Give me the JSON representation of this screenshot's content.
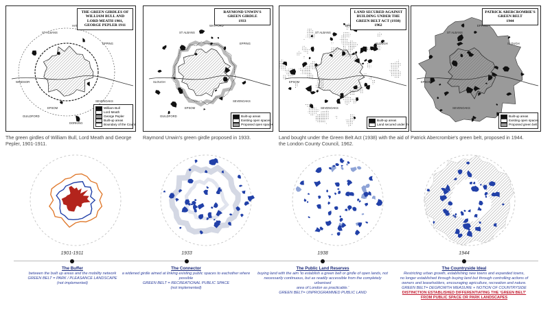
{
  "maps": [
    {
      "title": "THE GREEN GIRDLES OF\nWILLIAM BULL AND\nLORD MEATH 1901,\nGEORGE PEPLER 1911",
      "caption": "The green girdles of William Bull, Lord Meath and George Pepler, 1901-1911.",
      "legend": [
        "William Bull",
        "Lord Meath",
        "George Pepler",
        "Built-up areas",
        "Boundary of the County of London"
      ],
      "place_labels": [
        "ST ALBANS",
        "HATFIELD",
        "EPPING",
        "WINDSOR",
        "EPSOM",
        "SEVENOAKS",
        "GUILDFORD",
        "DORKING"
      ]
    },
    {
      "title": "RAYMOND UNWIN'S\nGREEN GIRDLE\n1933",
      "caption": "Raymond Unwin's green girdle proposed in 1933.",
      "legend": [
        "Built-up areas",
        "Existing open spaces",
        "Proposed open spaces"
      ],
      "place_labels": [
        "ST ALBANS",
        "WATFORD",
        "EPPING",
        "SLOUGH",
        "EPSOM",
        "SEVENOAKS",
        "GUILDFORD"
      ]
    },
    {
      "title": "LAND SECURED AGAINST\nBUILDING UNDER THE\nGREEN BELT ACT (1938)\n1962",
      "caption": "Land bought under the Green Belt Act (1938) with the aid of the London County Council, 1962.",
      "legend": [
        "Built-up areas",
        "Land secured under the Act with the aid of the London County Council"
      ],
      "place_labels": [
        "ST ALBANS",
        "EPPING",
        "SLOUGH",
        "EPSOM",
        "SEVENOAKS"
      ]
    },
    {
      "title": "PATRICK ABERCROMBIE'S\nGREEN BELT\n1944",
      "caption": "Patrick Abercrombie's green belt, proposed in 1944.",
      "legend": [
        "Built-up areas",
        "Existing open spaces",
        "Proposed green belt"
      ],
      "place_labels": [
        "ST ALBANS",
        "EPPING",
        "SLOUGH",
        "EPSOM",
        "SEVENOAKS"
      ]
    }
  ],
  "timeline": {
    "years": [
      "1901-1911",
      "1933",
      "1938",
      "1944"
    ]
  },
  "stages": [
    {
      "title": "The Buffer",
      "lines": [
        "between the built up areas and the mobility network",
        "GREEN BELT = PARK / PLEASANCE LANDSCAPE",
        "(not implemented)"
      ],
      "note": ""
    },
    {
      "title": "The Connector",
      "lines": [
        "a widened girdle aimed at linking existing public spaces to eachother where possible",
        "GREEN BELT = RECREATIONAL PUBLIC SPACE",
        "(not implemented)"
      ],
      "note": ""
    },
    {
      "title": "The Public Land Reserves",
      "lines": [
        "buying land with the aim 'to establish a green belt or girdle of open lands, not",
        "necessarily continuous, but as readily accessible from the completely urbanised",
        "area of London as practicable.'",
        "GREEN BELT= UNPROGRAMMED PUBLIC LAND"
      ],
      "note": ""
    },
    {
      "title": "The Countryside Ideal",
      "lines": [
        "Restricting urban growth, establishing new towns and expanded towns,",
        "no longer established through buying land but through controlling actions of",
        "owners and leaseholders, encouraging agriculture, recreation and nature.",
        "GREEN BELT= DEGROWTH MEASURE + NOTION OF COUNTRYSIDE"
      ],
      "note": "DISTINCTION ESTABLISHED DIFFERENTIATING THE 'GREEN BELT' FROM PUBLIC SPACE OR PARK LANDSCAPES"
    }
  ],
  "colors": {
    "accent_blue": "#2140a8",
    "light_blue": "#8ea3d6",
    "buffer_red": "#b3241c",
    "buffer_orange": "#e07a2e",
    "note_red": "#c0182d"
  }
}
